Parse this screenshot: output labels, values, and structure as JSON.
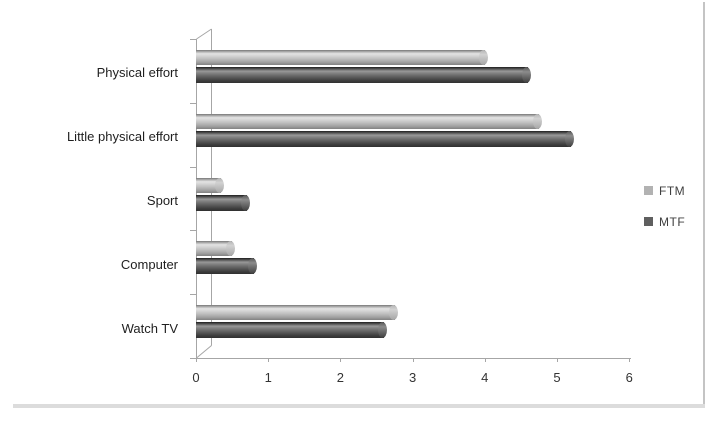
{
  "figure": {
    "background": "#ffffff",
    "border_bottom_color": "#dcdcdc",
    "border_right_color": "#c4c4c4"
  },
  "chart_data": {
    "type": "bar",
    "orientation": "horizontal",
    "style": "3d-cylinder",
    "title": "",
    "xlabel": "",
    "ylabel": "",
    "categories": [
      "Physical effort",
      "Little physical effort",
      "Sport",
      "Computer",
      "Watch TV"
    ],
    "series": [
      {
        "name": "FTM",
        "color": "#b2b2b2",
        "values": [
          4.0,
          4.75,
          0.35,
          0.5,
          2.75
        ]
      },
      {
        "name": "MTF",
        "color": "#5f5f5f",
        "values": [
          4.6,
          5.2,
          0.7,
          0.8,
          2.6
        ]
      }
    ],
    "xlim": [
      0,
      6
    ],
    "xticks": [
      "0",
      "1",
      "2",
      "3",
      "4",
      "5",
      "6"
    ],
    "grid": false,
    "legend_position": "right",
    "axis_color": "#a6a6a6"
  },
  "legend": {
    "items": [
      {
        "label": "FTM",
        "color": "#b2b2b2"
      },
      {
        "label": "MTF",
        "color": "#5f5f5f"
      }
    ]
  }
}
